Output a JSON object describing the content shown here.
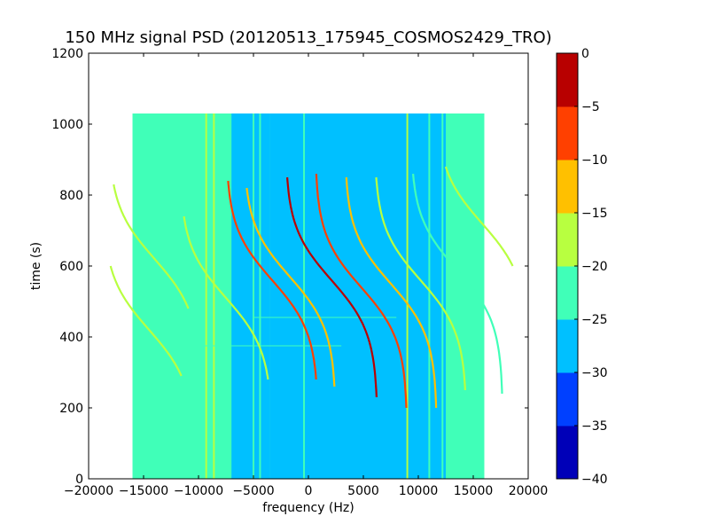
{
  "chart_data": {
    "type": "heatmap",
    "title": "150 MHz signal PSD (20120513_175945_COSMOS2429_TRO)",
    "xlabel": "frequency (Hz)",
    "ylabel": "time (s)",
    "xlim": [
      -20000,
      20000
    ],
    "ylim": [
      0,
      1200
    ],
    "xticks": [
      -20000,
      -15000,
      -10000,
      -5000,
      0,
      5000,
      10000,
      15000,
      20000
    ],
    "xtick_labels": [
      "−20000",
      "−15000",
      "−10000",
      "−5000",
      "0",
      "5000",
      "10000",
      "15000",
      "20000"
    ],
    "yticks": [
      0,
      200,
      400,
      600,
      800,
      1000,
      1200
    ],
    "ytick_labels": [
      "0",
      "200",
      "400",
      "600",
      "800",
      "1000",
      "1200"
    ],
    "data_extent": {
      "x": [
        -16000,
        16000
      ],
      "y": [
        0,
        1030
      ]
    },
    "background_level": -25,
    "noise_floor_regions": [
      {
        "x": [
          -16000,
          -7000
        ],
        "level": -23
      },
      {
        "x": [
          -7000,
          -3500
        ],
        "level": -26
      },
      {
        "x": [
          -3500,
          12500
        ],
        "level": -28
      },
      {
        "x": [
          12500,
          16000
        ],
        "level": -23
      }
    ],
    "vertical_lines": [
      {
        "x": -9300,
        "level": -18
      },
      {
        "x": -8600,
        "level": -20
      },
      {
        "x": -5000,
        "level": -22
      },
      {
        "x": -4400,
        "level": -22
      },
      {
        "x": -400,
        "level": -22
      },
      {
        "x": 9000,
        "level": -20
      },
      {
        "x": 11000,
        "level": -22
      },
      {
        "x": 12200,
        "level": -23
      }
    ],
    "horizontal_lines": [
      {
        "y": 375,
        "x": [
          -16000,
          3000
        ],
        "level": -21
      },
      {
        "y": 455,
        "x": [
          -5000,
          8000
        ],
        "level": -21
      }
    ],
    "doppler_traces": [
      {
        "f_center": -14500,
        "t_center": 420,
        "t_range": [
          290,
          600
        ],
        "level": -20
      },
      {
        "f_center": -14000,
        "t_center": 620,
        "t_range": [
          480,
          830
        ],
        "level": -19
      },
      {
        "f_center": -7500,
        "t_center": 510,
        "t_range": [
          280,
          740
        ],
        "level": -18
      },
      {
        "f_center": -3300,
        "t_center": 560,
        "t_range": [
          280,
          840
        ],
        "level": -10
      },
      {
        "f_center": -1700,
        "t_center": 570,
        "t_range": [
          260,
          820
        ],
        "level": -14
      },
      {
        "f_center": 2100,
        "t_center": 560,
        "t_range": [
          230,
          850
        ],
        "level": -4
      },
      {
        "f_center": 4800,
        "t_center": 540,
        "t_range": [
          200,
          860
        ],
        "level": -8
      },
      {
        "f_center": 7500,
        "t_center": 550,
        "t_range": [
          200,
          850
        ],
        "level": -12
      },
      {
        "f_center": 10200,
        "t_center": 560,
        "t_range": [
          250,
          850
        ],
        "level": -16
      },
      {
        "f_center": 13500,
        "t_center": 590,
        "t_range": [
          240,
          860
        ],
        "level": -21
      },
      {
        "f_center": 15800,
        "t_center": 720,
        "t_range": [
          600,
          880
        ],
        "level": -19
      }
    ],
    "colorbar": {
      "min": -40,
      "max": 0,
      "ticks": [
        0,
        -5,
        -10,
        -15,
        -20,
        -25,
        -30,
        -35,
        -40
      ],
      "tick_labels": [
        "0",
        "−5",
        "−10",
        "−15",
        "−20",
        "−25",
        "−30",
        "−35",
        "−40"
      ],
      "colors": [
        "#0000b8",
        "#0040ff",
        "#00c0ff",
        "#40ffb8",
        "#b8ff40",
        "#ffc000",
        "#ff4000",
        "#b80000"
      ]
    }
  }
}
